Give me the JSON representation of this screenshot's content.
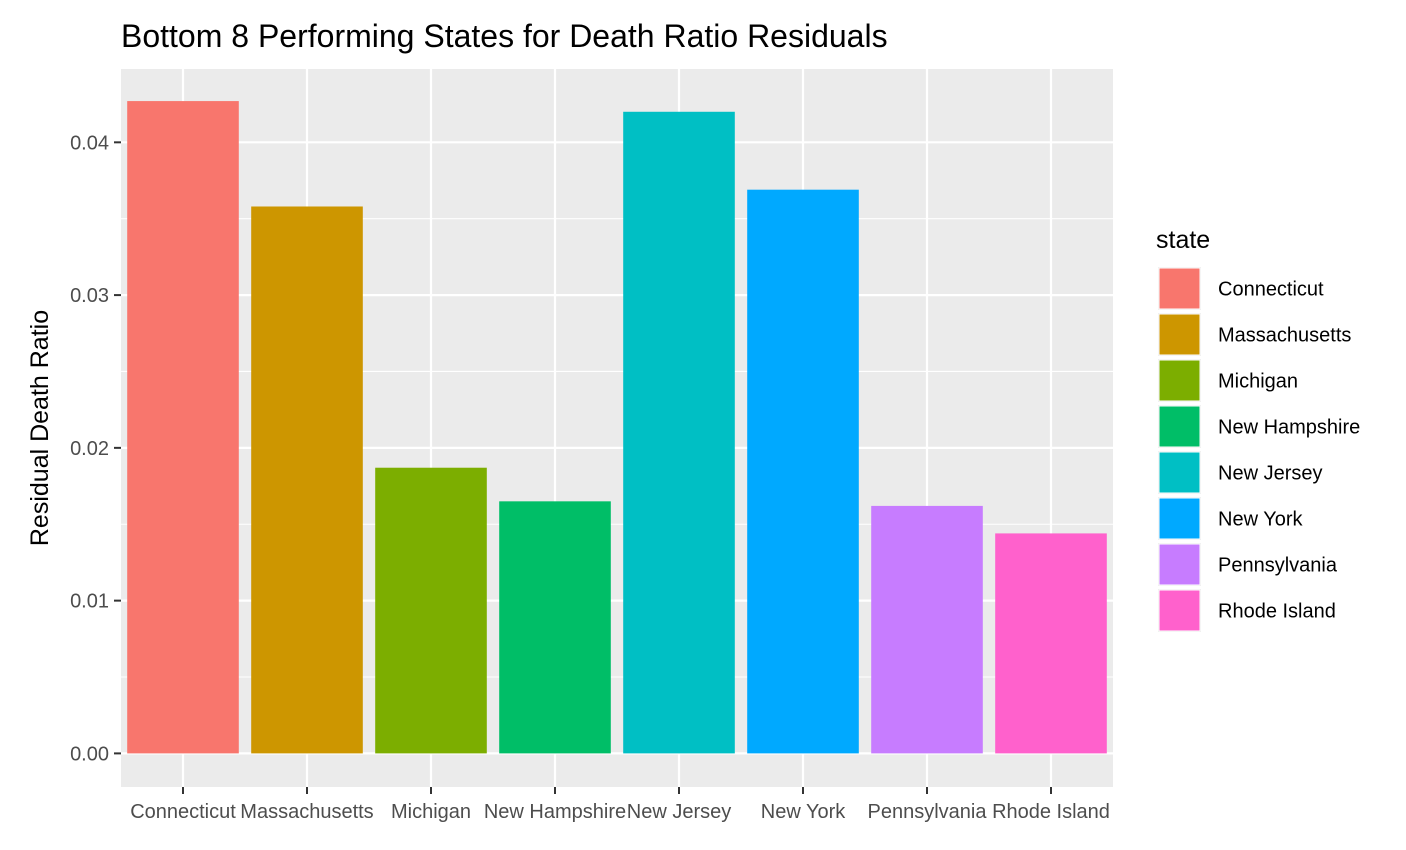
{
  "chart_data": {
    "type": "bar",
    "title": "Bottom 8 Performing States for Death Ratio Residuals",
    "xlabel": "",
    "ylabel": "Residual Death Ratio",
    "categories": [
      "Connecticut",
      "Massachusetts",
      "Michigan",
      "New Hampshire",
      "New Jersey",
      "New York",
      "Pennsylvania",
      "Rhode Island"
    ],
    "values": [
      0.0427,
      0.0358,
      0.0187,
      0.0165,
      0.042,
      0.0369,
      0.0162,
      0.0144
    ],
    "colors": [
      "#F8766D",
      "#CD9600",
      "#7CAE00",
      "#00BE67",
      "#00BFC4",
      "#00A9FF",
      "#C77CFF",
      "#FF61CC"
    ],
    "ylim": [
      -0.0022,
      0.0448
    ],
    "yticks": [
      0.0,
      0.01,
      0.02,
      0.03,
      0.04
    ],
    "ytick_labels": [
      "0.00",
      "0.01",
      "0.02",
      "0.03",
      "0.04"
    ],
    "grid": true,
    "panel_background": "#EBEBEB",
    "legend": {
      "title": "state",
      "position": "right",
      "entries": [
        "Connecticut",
        "Massachusetts",
        "Michigan",
        "New Hampshire",
        "New Jersey",
        "New York",
        "Pennsylvania",
        "Rhode Island"
      ]
    }
  }
}
